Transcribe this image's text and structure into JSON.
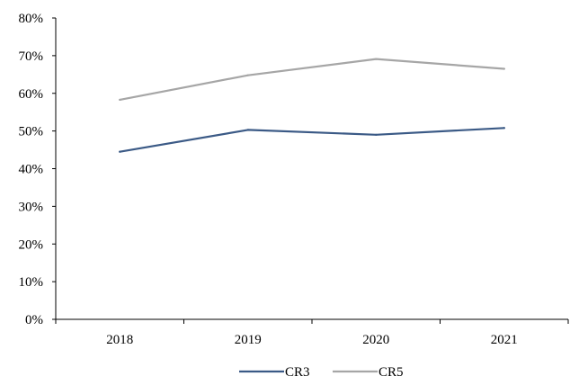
{
  "chart_data": {
    "type": "line",
    "categories": [
      "2018",
      "2019",
      "2020",
      "2021"
    ],
    "y_tick_labels": [
      "0%",
      "10%",
      "20%",
      "30%",
      "40%",
      "50%",
      "60%",
      "70%",
      "80%"
    ],
    "ylim": [
      0,
      80
    ],
    "grid": false,
    "legend_position": "bottom",
    "series": [
      {
        "name": "CR3",
        "values": [
          44.5,
          50.3,
          49.0,
          50.8
        ],
        "color": "#3b5a86"
      },
      {
        "name": "CR5",
        "values": [
          58.3,
          64.8,
          69.1,
          66.5
        ],
        "color": "#a6a6a6"
      }
    ]
  }
}
